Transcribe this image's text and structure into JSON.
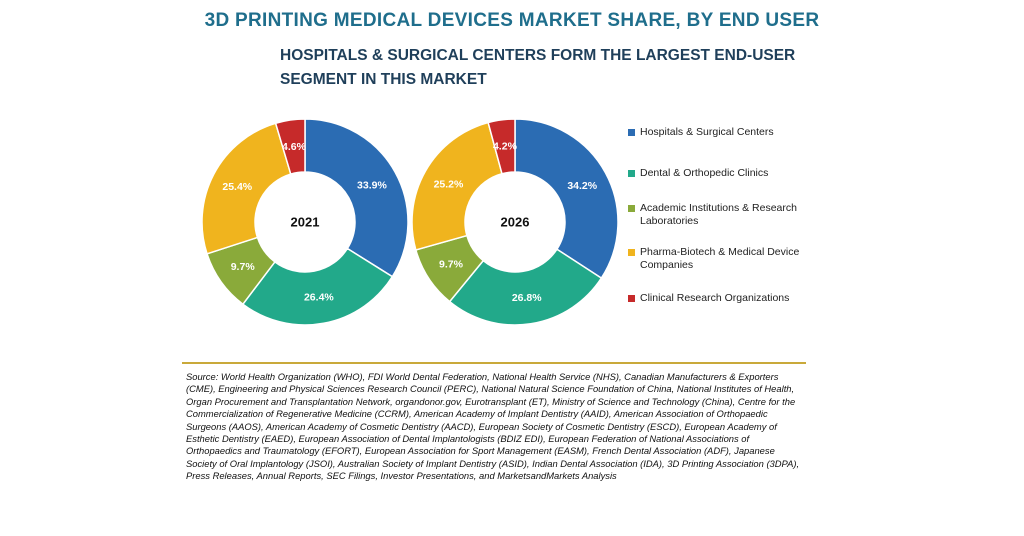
{
  "header": {
    "title": "3D PRINTING MEDICAL DEVICES MARKET SHARE, BY END USER",
    "subtitle": "HOSPITALS & SURGICAL CENTERS FORM THE LARGEST END-USER SEGMENT IN THIS MARKET"
  },
  "chart_data": {
    "type": "pie",
    "variant": "donut",
    "categories": [
      "Hospitals & Surgical  Centers",
      "Dental & Orthopedic Clinics",
      "Academic Institutions & Research Laboratories",
      "Pharma-Biotech & Medical Device Companies",
      "Clinical Research Organizations"
    ],
    "colors": [
      "#2b6cb3",
      "#22a98a",
      "#8aaa3a",
      "#f0b41e",
      "#c62a2a"
    ],
    "series": [
      {
        "name": "2021",
        "values": [
          33.9,
          26.4,
          9.7,
          25.4,
          4.6
        ],
        "labels": [
          "33.9%",
          "26.4%",
          "9.7%",
          "25.4%",
          "4.6%"
        ]
      },
      {
        "name": "2026",
        "values": [
          34.2,
          26.8,
          9.7,
          25.2,
          4.2
        ],
        "labels": [
          "34.2%",
          "26.8%",
          "9.7%",
          "25.2%",
          "4.2%"
        ]
      }
    ],
    "legend_position": "right"
  },
  "footer": {
    "source": "Source: World Health Organization (WHO), FDI World Dental Federation, National Health Service (NHS), Canadian Manufacturers & Exporters (CME), Engineering and Physical Sciences Research Council (PERC), National Natural Science Foundation of China, National Institutes of Health, Organ Procurement and Transplantation Network, organdonor.gov, Eurotransplant (ET), Ministry of Science and Technology (China), Centre for the Commercialization of Regenerative Medicine (CCRM), American Academy of Implant Dentistry (AAID), American Association of Orthopaedic Surgeons (AAOS), American Academy of Cosmetic Dentistry (AACD), European Society of Cosmetic Dentistry (ESCD), European Academy of Esthetic Dentistry (EAED), European Association of Dental Implantologists (BDIZ EDI), European Federation of National Associations of Orthopaedics and Traumatology (EFORT), European Association for Sport Management (EASM), French Dental Association (ADF), Japanese Society of Oral Implantology (JSOI), Australian Society of Implant Dentistry (ASID), Indian Dental Association (IDA), 3D Printing Association (3DPA), Press Releases, Annual Reports, SEC Filings, Investor Presentations, and MarketsandMarkets Analysis"
  }
}
